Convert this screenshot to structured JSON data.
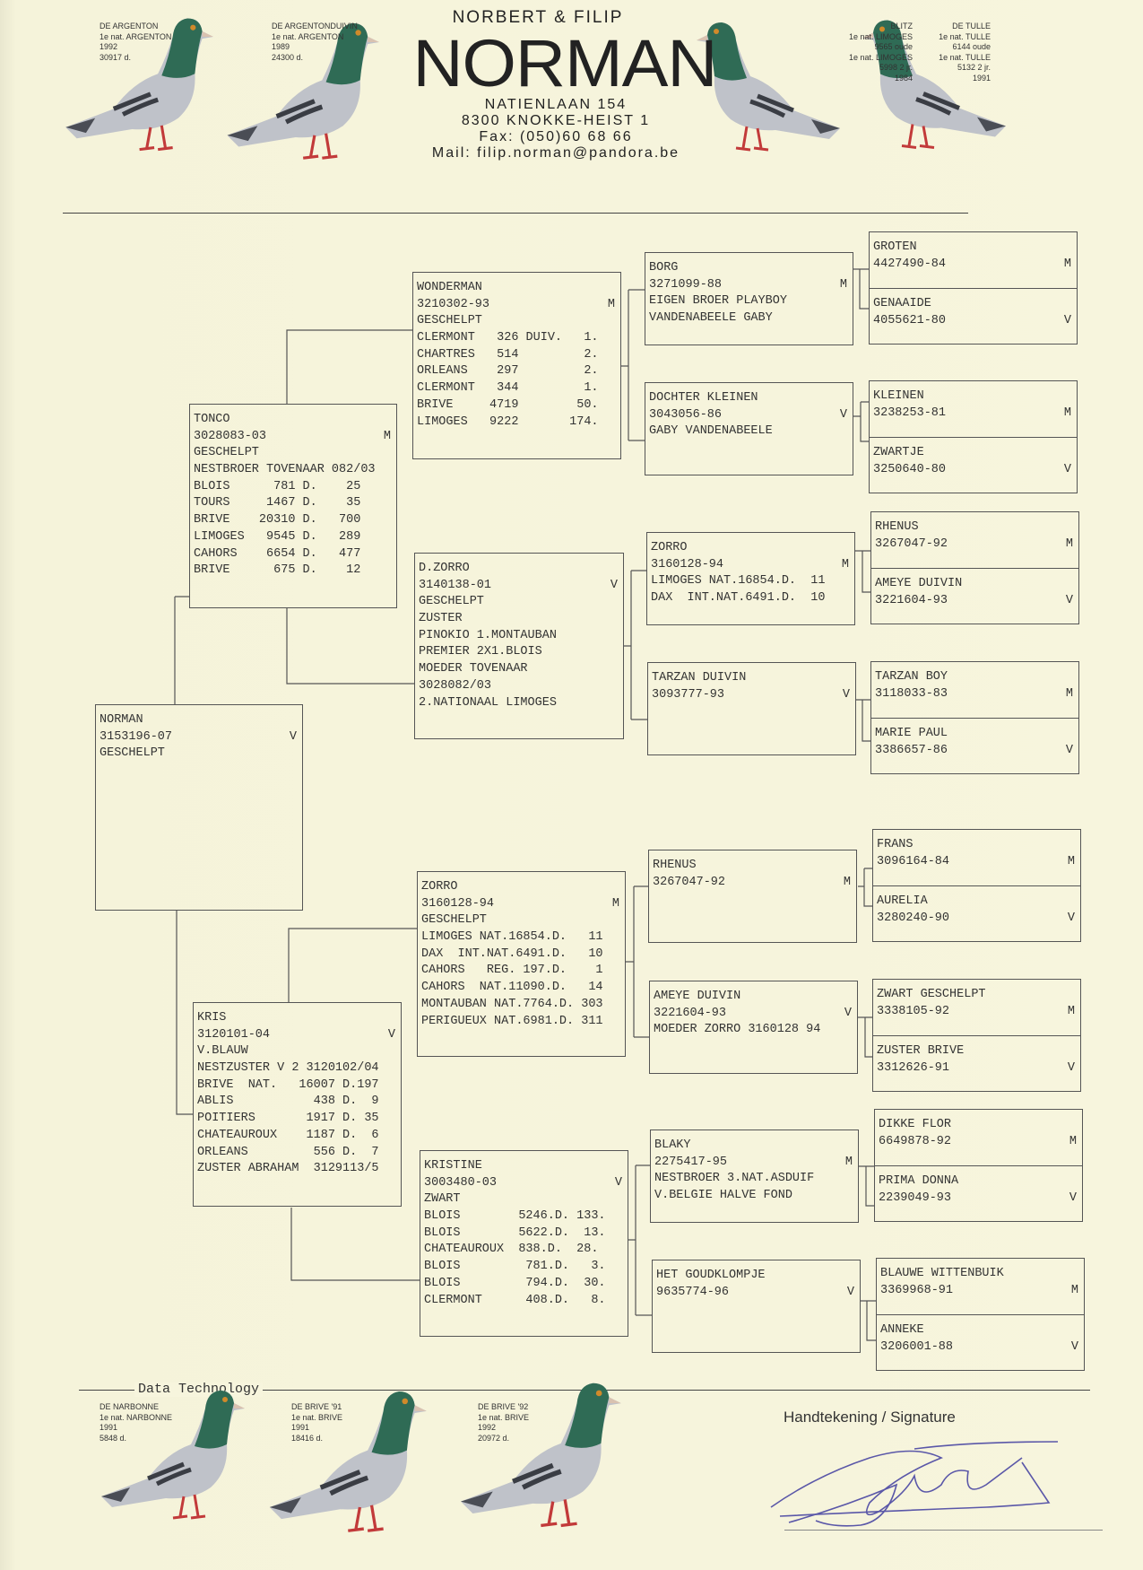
{
  "header": {
    "subtitle": "NORBERT & FILIP",
    "brand": "NORMAN",
    "address": [
      "NATIENLAAN 154",
      "8300 KNOKKE-HEIST 1",
      "Fax: (050)60 68 66",
      "Mail: filip.norman@pandora.be"
    ]
  },
  "top_captions": [
    {
      "lines": [
        "DE ARGENTON",
        "1e nat. ARGENTON",
        "1992",
        "30917 d."
      ]
    },
    {
      "lines": [
        "DE ARGENTONDUIVIN",
        "1e nat. ARGENTON",
        "1989",
        "24300 d."
      ]
    },
    {
      "lines": [
        "BLITZ",
        "1e nat. LIMOGES",
        "9565 oude",
        "1e nat. LIMOGES",
        "5998 2 jr.",
        "1984"
      ]
    },
    {
      "lines": [
        "DE TULLE",
        "1e nat. TULLE",
        "6144 oude",
        "1e nat. TULLE",
        "5132 2 jr.",
        "1991"
      ]
    }
  ],
  "bottom_captions": [
    {
      "lines": [
        "DE NARBONNE",
        "1e nat. NARBONNE",
        "1991",
        "5848 d."
      ]
    },
    {
      "lines": [
        "DE BRIVE '91",
        "1e nat. BRIVE",
        "1991",
        "18416 d."
      ]
    },
    {
      "lines": [
        "DE BRIVE '92",
        "1e nat. BRIVE",
        "1992",
        "20972 d."
      ]
    }
  ],
  "footer": {
    "data_technology": "Data Technology",
    "signature_label": "Handtekening / Signature"
  },
  "colors": {
    "paper": "#f7f5dd",
    "ink": "#333333",
    "pigeon_neck": "#2f6b55",
    "pigeon_body": "#b8bcc4",
    "signature_ink": "#5a57a8"
  },
  "pedigree": {
    "subject": {
      "name": "NORMAN",
      "ring": "3153196-07",
      "sex": "V",
      "lines": [
        "GESCHELPT"
      ]
    },
    "sire": {
      "name": "TONCO",
      "ring": "3028083-03",
      "sex": "M",
      "lines": [
        "GESCHELPT",
        "NESTBROER TOVENAAR 082/03",
        "BLOIS      781 D.    25",
        "TOURS     1467 D.    35",
        "BRIVE    20310 D.   700",
        "LIMOGES   9545 D.   289",
        "CAHORS    6654 D.   477",
        "BRIVE      675 D.    12"
      ]
    },
    "dam": {
      "name": "KRIS",
      "ring": "3120101-04",
      "sex": "V",
      "lines": [
        "V.BLAUW",
        "NESTZUSTER V 2 3120102/04",
        "BRIVE  NAT.   16007 D.197",
        "ABLIS           438 D.  9",
        "POITIERS       1917 D. 35",
        "CHATEAUROUX    1187 D.  6",
        "ORLEANS         556 D.  7",
        "ZUSTER ABRAHAM  3129113/5"
      ]
    },
    "ss": {
      "name": "WONDERMAN",
      "ring": "3210302-93",
      "sex": "M",
      "lines": [
        "GESCHELPT",
        "CLERMONT   326 DUIV.   1.",
        "CHARTRES   514         2.",
        "ORLEANS    297         2.",
        "CLERMONT   344         1.",
        "BRIVE     4719        50.",
        "LIMOGES   9222       174."
      ]
    },
    "sd": {
      "name": "D.ZORRO",
      "ring": "3140138-01",
      "sex": "V",
      "lines": [
        "GESCHELPT",
        "ZUSTER",
        "PINOKIO 1.MONTAUBAN",
        "PREMIER 2X1.BLOIS",
        "MOEDER TOVENAAR",
        "3028082/03",
        "2.NATIONAAL LIMOGES"
      ]
    },
    "ds": {
      "name": "ZORRO",
      "ring": "3160128-94",
      "sex": "M",
      "lines": [
        "GESCHELPT",
        "LIMOGES NAT.16854.D.   11",
        "DAX  INT.NAT.6491.D.   10",
        "CAHORS   REG. 197.D.    1",
        "CAHORS  NAT.11090.D.   14",
        "MONTAUBAN NAT.7764.D. 303",
        "PERIGUEUX NAT.6981.D. 311"
      ]
    },
    "dd": {
      "name": "KRISTINE",
      "ring": "3003480-03",
      "sex": "V",
      "lines": [
        "ZWART",
        "BLOIS        5246.D. 133.",
        "BLOIS        5622.D.  13.",
        "CHATEAUROUX  838.D.  28.",
        "BLOIS         781.D.   3.",
        "BLOIS         794.D.  30.",
        "CLERMONT      408.D.   8."
      ]
    },
    "gen3": [
      {
        "name": "BORG",
        "ring": "3271099-88",
        "sex": "M",
        "lines": [
          "EIGEN BROER PLAYBOY",
          "VANDENABEELE GABY"
        ]
      },
      {
        "name": "DOCHTER KLEINEN",
        "ring": "3043056-86",
        "sex": "V",
        "lines": [
          "GABY VANDENABEELE"
        ]
      },
      {
        "name": "ZORRO",
        "ring": "3160128-94",
        "sex": "M",
        "lines": [
          "LIMOGES NAT.16854.D.  11",
          "DAX  INT.NAT.6491.D.  10"
        ]
      },
      {
        "name": "TARZAN DUIVIN",
        "ring": "3093777-93",
        "sex": "V",
        "lines": []
      },
      {
        "name": "RHENUS",
        "ring": "3267047-92",
        "sex": "M",
        "lines": []
      },
      {
        "name": "AMEYE DUIVIN",
        "ring": "3221604-93",
        "sex": "V",
        "lines": [
          "MOEDER ZORRO 3160128 94"
        ]
      },
      {
        "name": "BLAKY",
        "ring": "2275417-95",
        "sex": "M",
        "lines": [
          "NESTBROER 3.NAT.ASDUIF",
          "V.BELGIE HALVE FOND"
        ]
      },
      {
        "name": "HET GOUDKLOMPJE",
        "ring": "9635774-96",
        "sex": "V",
        "lines": []
      }
    ],
    "gen4": [
      {
        "sire": {
          "name": "GROTEN",
          "ring": "4427490-84",
          "sex": "M"
        },
        "dam": {
          "name": "GENAAIDE",
          "ring": "4055621-80",
          "sex": "V"
        }
      },
      {
        "sire": {
          "name": "KLEINEN",
          "ring": "3238253-81",
          "sex": "M"
        },
        "dam": {
          "name": "ZWARTJE",
          "ring": "3250640-80",
          "sex": "V"
        }
      },
      {
        "sire": {
          "name": "RHENUS",
          "ring": "3267047-92",
          "sex": "M"
        },
        "dam": {
          "name": "AMEYE DUIVIN",
          "ring": "3221604-93",
          "sex": "V"
        }
      },
      {
        "sire": {
          "name": "TARZAN BOY",
          "ring": "3118033-83",
          "sex": "M"
        },
        "dam": {
          "name": "MARIE PAUL",
          "ring": "3386657-86",
          "sex": "V"
        }
      },
      {
        "sire": {
          "name": "FRANS",
          "ring": "3096164-84",
          "sex": "M"
        },
        "dam": {
          "name": "AURELIA",
          "ring": "3280240-90",
          "sex": "V"
        }
      },
      {
        "sire": {
          "name": "ZWART GESCHELPT",
          "ring": "3338105-92",
          "sex": "M"
        },
        "dam": {
          "name": "ZUSTER BRIVE",
          "ring": "3312626-91",
          "sex": "V"
        }
      },
      {
        "sire": {
          "name": "DIKKE FLOR",
          "ring": "6649878-92",
          "sex": "M"
        },
        "dam": {
          "name": "PRIMA DONNA",
          "ring": "2239049-93",
          "sex": "V"
        }
      },
      {
        "sire": {
          "name": "BLAUWE WITTENBUIK",
          "ring": "3369968-91",
          "sex": "M"
        },
        "dam": {
          "name": "ANNEKE",
          "ring": "3206001-88",
          "sex": "V"
        }
      }
    ]
  }
}
